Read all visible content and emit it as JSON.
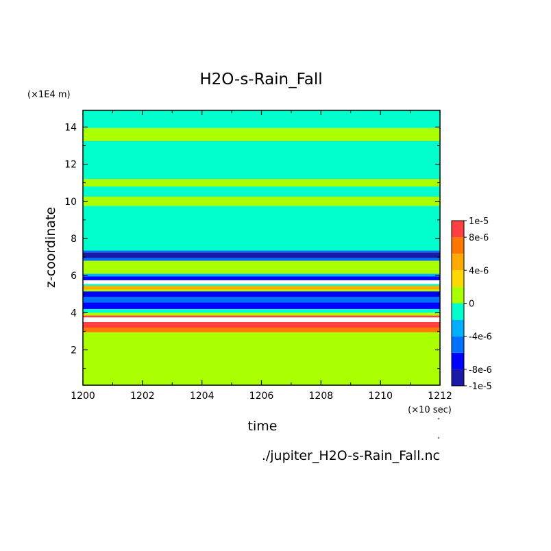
{
  "chart_data": {
    "type": "heatmap",
    "title": "H2O-s-Rain_Fall",
    "xlabel": "time",
    "ylabel": "z-coordinate",
    "x_unit": "(×10 sec)",
    "y_unit": "(×1E4 m)",
    "source_file": "./jupiter_H2O-s-Rain_Fall.nc",
    "xlim": [
      1200,
      1212
    ],
    "ylim": [
      0.1,
      14.9
    ],
    "x_ticks": [
      1200,
      1202,
      1204,
      1206,
      1208,
      1210,
      1212
    ],
    "y_ticks": [
      2,
      4,
      6,
      8,
      10,
      12,
      14
    ],
    "colorbar": {
      "range": [
        -1e-05,
        1e-05
      ],
      "labels": [
        {
          "value": 1e-05,
          "text": "1e-5"
        },
        {
          "value": 8e-06,
          "text": "8e-6"
        },
        {
          "value": 4e-06,
          "text": "4e-6"
        },
        {
          "value": 0,
          "text": "0"
        },
        {
          "value": -4e-06,
          "text": "-4e-6"
        },
        {
          "value": -8e-06,
          "text": "-8e-6"
        },
        {
          "value": -1e-05,
          "text": "-1e-5"
        }
      ],
      "levels": [
        {
          "from": -1e-05,
          "to": -8e-06,
          "color": "#1a1aa6"
        },
        {
          "from": -8e-06,
          "to": -6e-06,
          "color": "#0000ff"
        },
        {
          "from": -6e-06,
          "to": -4e-06,
          "color": "#0070ff"
        },
        {
          "from": -4e-06,
          "to": -2e-06,
          "color": "#00b0ff"
        },
        {
          "from": -2e-06,
          "to": 0,
          "color": "#00ffcc"
        },
        {
          "from": 0,
          "to": 2e-06,
          "color": "#aaff00"
        },
        {
          "from": 2e-06,
          "to": 4e-06,
          "color": "#ffd700"
        },
        {
          "from": 4e-06,
          "to": 6e-06,
          "color": "#ffaa00"
        },
        {
          "from": 6e-06,
          "to": 8e-06,
          "color": "#ff7700"
        },
        {
          "from": 8e-06,
          "to": 1e-05,
          "color": "#ff4040"
        }
      ]
    },
    "bands": [
      {
        "z0": 0.1,
        "z1": 2.95,
        "value": 1e-06
      },
      {
        "z0": 2.95,
        "z1": 3.2,
        "value": 7e-06
      },
      {
        "z0": 3.2,
        "z1": 3.5,
        "value": 9e-06
      },
      {
        "z0": 3.5,
        "z1": 3.75,
        "value": null
      },
      {
        "z0": 3.75,
        "z1": 3.85,
        "value": 9e-06
      },
      {
        "z0": 3.85,
        "z1": 4.0,
        "value": 1e-06
      },
      {
        "z0": 4.0,
        "z1": 4.2,
        "value": -1e-06
      },
      {
        "z0": 4.2,
        "z1": 4.55,
        "value": -7e-06
      },
      {
        "z0": 4.55,
        "z1": 4.85,
        "value": -5e-06
      },
      {
        "z0": 4.85,
        "z1": 5.15,
        "value": -7e-06
      },
      {
        "z0": 5.15,
        "z1": 5.25,
        "value": 1e-06
      },
      {
        "z0": 5.25,
        "z1": 5.45,
        "value": 5e-06
      },
      {
        "z0": 5.45,
        "z1": 5.55,
        "value": -1e-06
      },
      {
        "z0": 5.55,
        "z1": 5.75,
        "value": null
      },
      {
        "z0": 5.75,
        "z1": 5.95,
        "value": -7e-06
      },
      {
        "z0": 5.95,
        "z1": 6.1,
        "value": -3e-06
      },
      {
        "z0": 6.1,
        "z1": 6.8,
        "value": 1e-06
      },
      {
        "z0": 6.8,
        "z1": 6.95,
        "value": -5e-06
      },
      {
        "z0": 6.95,
        "z1": 7.25,
        "value": -9e-06
      },
      {
        "z0": 7.25,
        "z1": 7.35,
        "value": -5e-06
      },
      {
        "z0": 7.35,
        "z1": 9.75,
        "value": -1e-06
      },
      {
        "z0": 9.75,
        "z1": 10.25,
        "value": 1e-06
      },
      {
        "z0": 10.25,
        "z1": 10.8,
        "value": -1e-06
      },
      {
        "z0": 10.8,
        "z1": 11.2,
        "value": 1e-06
      },
      {
        "z0": 11.2,
        "z1": 13.25,
        "value": -1e-06
      },
      {
        "z0": 13.25,
        "z1": 13.95,
        "value": 1e-06
      },
      {
        "z0": 13.95,
        "z1": 14.9,
        "value": -1e-06
      }
    ]
  }
}
